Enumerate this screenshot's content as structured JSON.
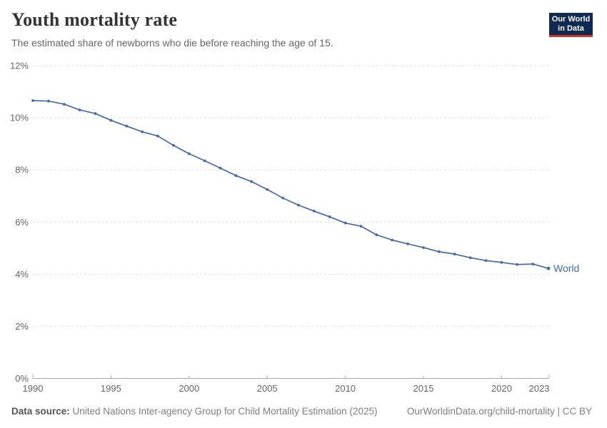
{
  "header": {
    "title": "Youth mortality rate",
    "subtitle": "The estimated share of newborns who die before reaching the age of 15."
  },
  "logo": {
    "line1": "Our World",
    "line2": "in Data",
    "bg_color": "#0E2A52",
    "bar_color": "#C8362C",
    "text_color": "#FFFFFF"
  },
  "chart_data": {
    "type": "line",
    "title": "Youth mortality rate",
    "xlabel": "",
    "ylabel": "",
    "x": [
      1990,
      1991,
      1992,
      1993,
      1994,
      1995,
      1996,
      1997,
      1998,
      1999,
      2000,
      2001,
      2002,
      2003,
      2004,
      2005,
      2006,
      2007,
      2008,
      2009,
      2010,
      2011,
      2012,
      2013,
      2014,
      2015,
      2016,
      2017,
      2018,
      2019,
      2020,
      2021,
      2022,
      2023
    ],
    "series": [
      {
        "name": "World",
        "color": "#4768A5",
        "values": [
          10.66,
          10.64,
          10.52,
          10.3,
          10.16,
          9.9,
          9.68,
          9.46,
          9.3,
          8.94,
          8.62,
          8.35,
          8.07,
          7.78,
          7.55,
          7.25,
          6.92,
          6.65,
          6.42,
          6.2,
          5.96,
          5.84,
          5.51,
          5.31,
          5.16,
          5.02,
          4.86,
          4.77,
          4.63,
          4.52,
          4.45,
          4.37,
          4.39,
          4.22
        ]
      }
    ],
    "ylim": [
      0,
      12
    ],
    "yticks": [
      0,
      2,
      4,
      6,
      8,
      10,
      12
    ],
    "ytick_suffix": "%",
    "xticks": [
      1990,
      1995,
      2000,
      2005,
      2010,
      2015,
      2020,
      2023
    ],
    "grid": "horizontal dashed",
    "legend": "end-of-line label"
  },
  "colors": {
    "grid": "#DDDDDD",
    "axis": "#A8A8A8",
    "tick_text": "#666666"
  },
  "footer": {
    "source_label": "Data source:",
    "source_text": " United Nations Inter-agency Group for Child Mortality Estimation (2025)",
    "right_text": "OurWorldinData.org/child-mortality | CC BY"
  }
}
